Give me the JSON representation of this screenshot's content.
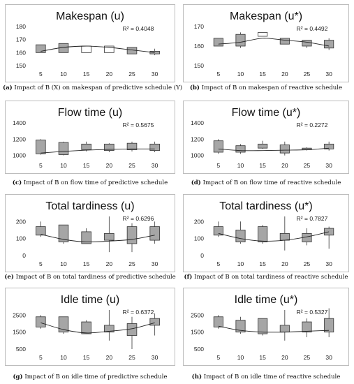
{
  "chart_data": [
    {
      "type": "boxplot",
      "title": "Makespan (u)",
      "caption_bold": "(a)",
      "caption_text": " Impact of B (X) on makespan of predictive schedule (Y)",
      "r2": "R² = 0.4048",
      "categories": [
        "5",
        "10",
        "15",
        "20",
        "25",
        "30"
      ],
      "yticks": [
        150,
        160,
        170,
        180
      ],
      "ylim": [
        150,
        180
      ],
      "boxes": [
        [
          160,
          166
        ],
        [
          160,
          167
        ],
        [
          160,
          165
        ],
        [
          160,
          165
        ],
        [
          159,
          164
        ],
        [
          159,
          161
        ]
      ],
      "whiskers": [
        [
          160,
          166
        ],
        [
          160,
          167
        ],
        [
          160,
          165
        ],
        [
          160,
          165
        ],
        [
          159,
          164
        ],
        [
          158,
          163
        ]
      ],
      "trend": [
        161,
        164,
        165,
        164,
        162,
        160
      ],
      "box_color": "#a6a6a6",
      "box_colors": [
        "#a6a6a6",
        "#a6a6a6",
        "#ffffff",
        "#ffffff",
        "#a6a6a6",
        "#a6a6a6"
      ]
    },
    {
      "type": "boxplot",
      "title": "Makespan (u*)",
      "caption_bold": "(b)",
      "caption_text": " Impact of B on makespan of reactive schedule",
      "r2": "R² = 0.4492",
      "categories": [
        "5",
        "10",
        "15",
        "20",
        "25",
        "30"
      ],
      "yticks": [
        150,
        160,
        170
      ],
      "ylim": [
        150,
        170
      ],
      "boxes": [
        [
          160,
          164
        ],
        [
          160,
          166
        ],
        [
          165,
          167
        ],
        [
          161,
          164
        ],
        [
          160,
          163
        ],
        [
          159,
          163
        ]
      ],
      "whiskers": [
        [
          160,
          164
        ],
        [
          159,
          167
        ],
        [
          165,
          167
        ],
        [
          161,
          164
        ],
        [
          159,
          163
        ],
        [
          158,
          164
        ]
      ],
      "trend": [
        161,
        162,
        164,
        163,
        162,
        160
      ],
      "box_color": "#a6a6a6",
      "box_colors": [
        "#a6a6a6",
        "#a6a6a6",
        "#ffffff",
        "#a6a6a6",
        "#a6a6a6",
        "#a6a6a6"
      ]
    },
    {
      "type": "boxplot",
      "title": "Flow time (u)",
      "caption_bold": "(c)",
      "caption_text": " Impact of B on flow time of predictive schedule",
      "r2": "R² = 0.5675",
      "categories": [
        "5",
        "10",
        "15",
        "20",
        "25",
        "30"
      ],
      "yticks": [
        1000,
        1200,
        1400
      ],
      "ylim": [
        980,
        1400
      ],
      "boxes": [
        [
          1020,
          1190
        ],
        [
          1010,
          1160
        ],
        [
          1070,
          1140
        ],
        [
          1060,
          1140
        ],
        [
          1070,
          1150
        ],
        [
          1060,
          1140
        ]
      ],
      "whiskers": [
        [
          1010,
          1200
        ],
        [
          1000,
          1170
        ],
        [
          1050,
          1170
        ],
        [
          1040,
          1150
        ],
        [
          1050,
          1170
        ],
        [
          1040,
          1170
        ]
      ],
      "trend": [
        1030,
        1050,
        1065,
        1075,
        1080,
        1080
      ],
      "box_color": "#a6a6a6"
    },
    {
      "type": "boxplot",
      "title": "Flow time (u*)",
      "caption_bold": "(d)",
      "caption_text": " Impact of B on flow time of reactive schedule",
      "r2": "R² = 0.2272",
      "categories": [
        "5",
        "10",
        "15",
        "20",
        "25",
        "30"
      ],
      "yticks": [
        1000,
        1200,
        1400
      ],
      "ylim": [
        980,
        1400
      ],
      "boxes": [
        [
          1040,
          1180
        ],
        [
          1040,
          1120
        ],
        [
          1090,
          1140
        ],
        [
          1030,
          1130
        ],
        [
          1070,
          1090
        ],
        [
          1080,
          1140
        ]
      ],
      "whiskers": [
        [
          1020,
          1200
        ],
        [
          1020,
          1140
        ],
        [
          1080,
          1180
        ],
        [
          1000,
          1170
        ],
        [
          1060,
          1100
        ],
        [
          1060,
          1170
        ]
      ],
      "trend": [
        1080,
        1060,
        1060,
        1065,
        1070,
        1090
      ],
      "box_color": "#a6a6a6"
    },
    {
      "type": "boxplot",
      "title": "Total tardiness (u)",
      "caption_bold": "(e)",
      "caption_text": " Impact of B on total tardiness of predictive schedule",
      "r2": "R² = 0.6296",
      "categories": [
        "5",
        "10",
        "15",
        "20",
        "25",
        "30"
      ],
      "yticks": [
        0,
        100,
        200
      ],
      "ylim": [
        0,
        230
      ],
      "boxes": [
        [
          120,
          170
        ],
        [
          80,
          180
        ],
        [
          70,
          140
        ],
        [
          90,
          130
        ],
        [
          70,
          170
        ],
        [
          90,
          170
        ]
      ],
      "whiskers": [
        [
          110,
          200
        ],
        [
          70,
          180
        ],
        [
          70,
          160
        ],
        [
          20,
          230
        ],
        [
          20,
          190
        ],
        [
          70,
          200
        ]
      ],
      "trend": [
        125,
        95,
        80,
        85,
        95,
        120
      ],
      "box_color": "#a6a6a6"
    },
    {
      "type": "boxplot",
      "title": "Total tardiness (u*)",
      "caption_bold": "(f)",
      "caption_text": " Impact of B on total tardiness of reactive schedule",
      "r2": "R² = 0.7827",
      "categories": [
        "5",
        "10",
        "15",
        "20",
        "25",
        "30"
      ],
      "yticks": [
        0,
        100,
        200
      ],
      "ylim": [
        0,
        230
      ],
      "boxes": [
        [
          120,
          170
        ],
        [
          80,
          150
        ],
        [
          80,
          170
        ],
        [
          90,
          130
        ],
        [
          80,
          130
        ],
        [
          120,
          160
        ]
      ],
      "whiskers": [
        [
          110,
          200
        ],
        [
          70,
          200
        ],
        [
          70,
          180
        ],
        [
          30,
          230
        ],
        [
          60,
          160
        ],
        [
          40,
          170
        ]
      ],
      "trend": [
        130,
        100,
        85,
        90,
        110,
        140
      ],
      "box_color": "#a6a6a6"
    },
    {
      "type": "boxplot",
      "title": "Idle time (u)",
      "caption_bold": "(g)",
      "caption_text": " Impact of B on idle time of predictive schedule",
      "r2": "R² = 0.6372",
      "categories": [
        "5",
        "10",
        "15",
        "20",
        "25",
        "30"
      ],
      "yticks": [
        500,
        1500,
        2500
      ],
      "ylim": [
        500,
        2800
      ],
      "boxes": [
        [
          1800,
          2400
        ],
        [
          1500,
          2400
        ],
        [
          1400,
          2100
        ],
        [
          1500,
          1900
        ],
        [
          1300,
          2000
        ],
        [
          1900,
          2300
        ]
      ],
      "whiskers": [
        [
          1700,
          2500
        ],
        [
          1400,
          2400
        ],
        [
          1400,
          2200
        ],
        [
          1000,
          2800
        ],
        [
          500,
          2400
        ],
        [
          1300,
          2600
        ]
      ],
      "trend": [
        2050,
        1650,
        1450,
        1550,
        1700,
        2050
      ],
      "box_color": "#a6a6a6"
    },
    {
      "type": "boxplot",
      "title": "Idle time (u*)",
      "caption_bold": "(h)",
      "caption_text": " Impact of B on idle time of reactive schedule",
      "r2": "R² = 0.5327",
      "categories": [
        "5",
        "10",
        "15",
        "20",
        "25",
        "30"
      ],
      "yticks": [
        500,
        1500,
        2500
      ],
      "ylim": [
        500,
        2800
      ],
      "boxes": [
        [
          1800,
          2400
        ],
        [
          1500,
          2200
        ],
        [
          1400,
          2300
        ],
        [
          1500,
          1900
        ],
        [
          1500,
          2100
        ],
        [
          1500,
          2300
        ]
      ],
      "whiskers": [
        [
          1700,
          2500
        ],
        [
          1400,
          2400
        ],
        [
          1300,
          2300
        ],
        [
          1000,
          2800
        ],
        [
          1200,
          2300
        ],
        [
          1200,
          2900
        ]
      ],
      "trend": [
        1850,
        1600,
        1500,
        1500,
        1550,
        1600
      ],
      "box_color": "#a6a6a6"
    }
  ]
}
